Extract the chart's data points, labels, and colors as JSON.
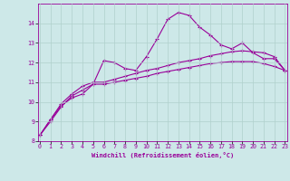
{
  "bg_color": "#cde8e8",
  "line_color": "#990099",
  "grid_color": "#b0d0cc",
  "x_values": [
    0,
    1,
    2,
    3,
    4,
    5,
    6,
    7,
    8,
    9,
    10,
    11,
    12,
    13,
    14,
    15,
    16,
    17,
    18,
    19,
    20,
    21,
    22,
    23
  ],
  "line1_y": [
    8.3,
    9.1,
    9.8,
    10.2,
    10.4,
    10.9,
    12.1,
    12.0,
    11.7,
    11.6,
    12.3,
    13.2,
    14.2,
    14.55,
    14.4,
    13.8,
    13.4,
    12.9,
    12.7,
    13.0,
    12.5,
    12.2,
    12.2,
    11.6
  ],
  "line2_y": [
    8.3,
    9.1,
    9.9,
    10.4,
    10.8,
    11.0,
    11.0,
    11.15,
    11.3,
    11.45,
    11.6,
    11.7,
    11.85,
    12.0,
    12.1,
    12.2,
    12.35,
    12.45,
    12.55,
    12.6,
    12.55,
    12.5,
    12.3,
    11.6
  ],
  "line3_y": [
    8.3,
    9.0,
    9.75,
    10.3,
    10.6,
    10.9,
    10.9,
    11.0,
    11.1,
    11.2,
    11.3,
    11.45,
    11.55,
    11.65,
    11.75,
    11.85,
    11.95,
    12.0,
    12.05,
    12.05,
    12.05,
    11.95,
    11.8,
    11.6
  ],
  "xlim": [
    0,
    23
  ],
  "ylim": [
    8,
    15
  ],
  "yticks": [
    8,
    9,
    10,
    11,
    12,
    13,
    14
  ],
  "xticks": [
    0,
    1,
    2,
    3,
    4,
    5,
    6,
    7,
    8,
    9,
    10,
    11,
    12,
    13,
    14,
    15,
    16,
    17,
    18,
    19,
    20,
    21,
    22,
    23
  ],
  "xlabel": "Windchill (Refroidissement éolien,°C)",
  "marker": "+"
}
